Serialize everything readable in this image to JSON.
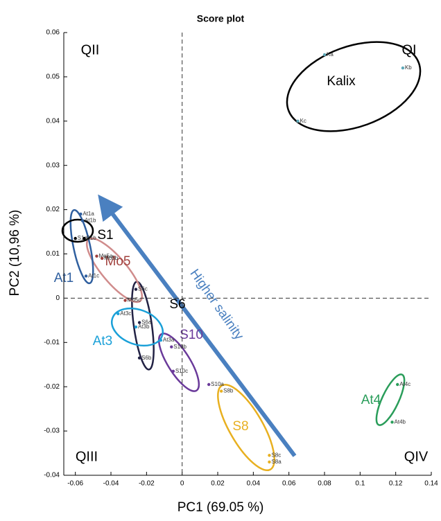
{
  "chart_data": {
    "type": "scatter",
    "title": "Score plot",
    "x_label": "PC1 (69.05 %)",
    "y_label": "PC2 (10,96 %)",
    "xlim": [
      -0.0665,
      0.14
    ],
    "ylim": [
      -0.04,
      0.06
    ],
    "xticks": [
      -0.06,
      -0.04,
      -0.02,
      0,
      0.02,
      0.04,
      0.06,
      0.08,
      0.1,
      0.12,
      0.14
    ],
    "yticks": [
      -0.04,
      -0.03,
      -0.02,
      -0.01,
      0,
      0.01,
      0.02,
      0.03,
      0.04,
      0.05,
      0.06
    ],
    "reference_lines": {
      "x": 0,
      "y": 0
    },
    "quadrants": [
      "QI",
      "QII",
      "QIII",
      "QIV"
    ],
    "annotation": "Higher salinity",
    "series": [
      {
        "name": "Kalix",
        "color": "#5fa8b8",
        "labels": [
          "Ka",
          "Kb",
          "Kc"
        ],
        "x": [
          0.08,
          0.124,
          0.065
        ],
        "y": [
          0.055,
          0.052,
          0.04
        ]
      },
      {
        "name": "At4",
        "color": "#2a9d5a",
        "labels": [
          "At4c",
          "At4b"
        ],
        "x": [
          0.121,
          0.118
        ],
        "y": [
          -0.0195,
          -0.028
        ]
      },
      {
        "name": "S8",
        "color": "#e8b020",
        "labels": [
          "S8b",
          "S8c",
          "S8a"
        ],
        "x": [
          0.022,
          0.049,
          0.049
        ],
        "y": [
          -0.021,
          -0.0355,
          -0.037
        ]
      },
      {
        "name": "S10",
        "color": "#6a3a9a",
        "labels": [
          "S10a",
          "S10c",
          "S10b"
        ],
        "x": [
          0.015,
          -0.005,
          -0.006
        ],
        "y": [
          -0.0195,
          -0.0165,
          -0.011
        ]
      },
      {
        "name": "S6",
        "color": "#222244",
        "labels": [
          "S6c",
          "S6a",
          "S6b"
        ],
        "x": [
          -0.026,
          -0.024,
          -0.024
        ],
        "y": [
          0.002,
          -0.0055,
          -0.0135
        ]
      },
      {
        "name": "At3",
        "color": "#1aa0d8",
        "labels": [
          "At3c",
          "At3b",
          "At3a"
        ],
        "x": [
          -0.036,
          -0.026,
          -0.012
        ],
        "y": [
          -0.0035,
          -0.0065,
          -0.0095
        ]
      },
      {
        "name": "Mo5",
        "color": "#a0403c",
        "labels": [
          "Mo5a",
          "Mo5b",
          "Mo5c"
        ],
        "x": [
          -0.048,
          -0.045,
          -0.032
        ],
        "y": [
          0.0095,
          0.009,
          -0.0005
        ]
      },
      {
        "name": "At1",
        "color": "#2f5f9f",
        "labels": [
          "At1a",
          "At1b",
          "At1c"
        ],
        "x": [
          -0.057,
          -0.056,
          -0.054
        ],
        "y": [
          0.019,
          0.0175,
          0.005
        ]
      },
      {
        "name": "S1",
        "color": "#000000",
        "labels": [
          "S1a",
          "S1b"
        ],
        "x": [
          -0.06,
          -0.055
        ],
        "y": [
          0.0135,
          0.0135
        ]
      }
    ]
  }
}
